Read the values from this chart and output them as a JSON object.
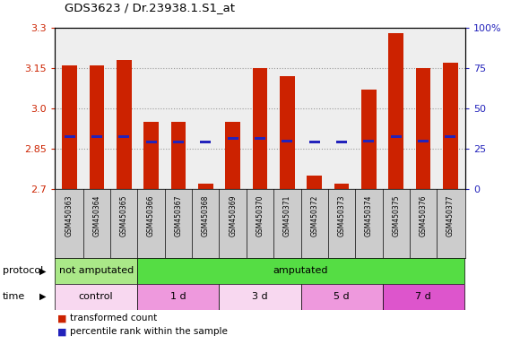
{
  "title": "GDS3623 / Dr.23938.1.S1_at",
  "samples": [
    "GSM450363",
    "GSM450364",
    "GSM450365",
    "GSM450366",
    "GSM450367",
    "GSM450368",
    "GSM450369",
    "GSM450370",
    "GSM450371",
    "GSM450372",
    "GSM450373",
    "GSM450374",
    "GSM450375",
    "GSM450376",
    "GSM450377"
  ],
  "bar_values": [
    3.16,
    3.16,
    3.18,
    2.95,
    2.95,
    2.72,
    2.95,
    3.15,
    3.12,
    2.75,
    2.72,
    3.07,
    3.28,
    3.15,
    3.17
  ],
  "blue_values": [
    2.895,
    2.895,
    2.895,
    2.875,
    2.875,
    2.875,
    2.89,
    2.89,
    2.88,
    2.875,
    2.875,
    2.88,
    2.895,
    2.88,
    2.895
  ],
  "ymin": 2.7,
  "ymax": 3.3,
  "y_ticks": [
    2.7,
    2.85,
    3.0,
    3.15,
    3.3
  ],
  "right_yticks": [
    0,
    25,
    50,
    75,
    100
  ],
  "right_yticklabels": [
    "0",
    "25",
    "50",
    "75",
    "100%"
  ],
  "bar_color": "#cc2200",
  "blue_color": "#2222bb",
  "protocol_groups": [
    {
      "label": "not amputated",
      "start": 0,
      "end": 3,
      "color": "#aae888"
    },
    {
      "label": "amputated",
      "start": 3,
      "end": 15,
      "color": "#55dd44"
    }
  ],
  "time_groups": [
    {
      "label": "control",
      "start": 0,
      "end": 3,
      "color": "#f8d8f0"
    },
    {
      "label": "1 d",
      "start": 3,
      "end": 6,
      "color": "#ee99dd"
    },
    {
      "label": "3 d",
      "start": 6,
      "end": 9,
      "color": "#f8d8f0"
    },
    {
      "label": "5 d",
      "start": 9,
      "end": 12,
      "color": "#ee99dd"
    },
    {
      "label": "7 d",
      "start": 12,
      "end": 15,
      "color": "#dd55cc"
    }
  ],
  "legend_items": [
    {
      "label": "transformed count",
      "color": "#cc2200"
    },
    {
      "label": "percentile rank within the sample",
      "color": "#2222bb"
    }
  ],
  "left_tick_color": "#cc2200",
  "right_tick_color": "#2222bb",
  "grid_color": "#999999",
  "plot_bg": "#eeeeee",
  "tick_label_bg": "#cccccc"
}
